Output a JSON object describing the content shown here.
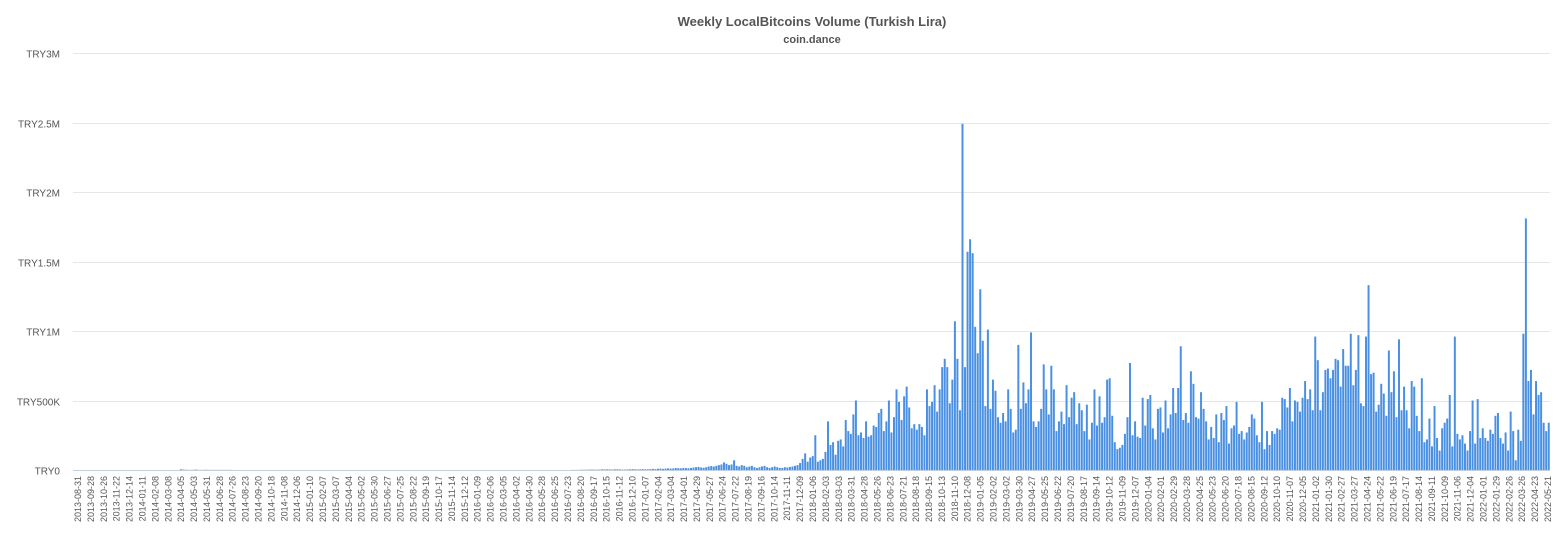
{
  "chart_data": {
    "type": "bar",
    "title": "Weekly LocalBitcoins Volume (Turkish Lira)",
    "subtitle": "coin.dance",
    "xlabel": "",
    "ylabel": "",
    "ylim": [
      0,
      3000000
    ],
    "y_ticks": [
      {
        "value": 0,
        "label": "TRY0"
      },
      {
        "value": 500000,
        "label": "TRY500K"
      },
      {
        "value": 1000000,
        "label": "TRY1M"
      },
      {
        "value": 1500000,
        "label": "TRY1.5M"
      },
      {
        "value": 2000000,
        "label": "TRY2M"
      },
      {
        "value": 2500000,
        "label": "TRY2.5M"
      },
      {
        "value": 3000000,
        "label": "TRY3M"
      }
    ],
    "grid": true,
    "legend": "none",
    "bar_color": "#4a90e2",
    "x_tick_labels": [
      "2013-08-31",
      "2013-09-28",
      "2013-10-26",
      "2013-11-22",
      "2013-12-14",
      "2014-01-11",
      "2014-02-08",
      "2014-03-08",
      "2014-04-05",
      "2014-05-03",
      "2014-05-31",
      "2014-06-28",
      "2014-07-26",
      "2014-08-23",
      "2014-09-20",
      "2014-10-18",
      "2014-11-08",
      "2014-12-06",
      "2015-01-10",
      "2015-02-07",
      "2015-03-07",
      "2015-04-04",
      "2015-05-02",
      "2015-05-30",
      "2015-06-27",
      "2015-07-25",
      "2015-08-22",
      "2015-09-19",
      "2015-10-17",
      "2015-11-14",
      "2015-12-12",
      "2016-01-09",
      "2016-02-06",
      "2016-03-05",
      "2016-04-02",
      "2016-04-30",
      "2016-05-28",
      "2016-06-25",
      "2016-07-23",
      "2016-08-20",
      "2016-09-17",
      "2016-10-15",
      "2016-11-12",
      "2016-12-10",
      "2017-01-07",
      "2017-02-04",
      "2017-03-04",
      "2017-04-01",
      "2017-04-29",
      "2017-05-27",
      "2017-06-24",
      "2017-07-22",
      "2017-08-19",
      "2017-09-16",
      "2017-10-14",
      "2017-11-11",
      "2017-12-09",
      "2018-01-06",
      "2018-02-03",
      "2018-03-03",
      "2018-03-31",
      "2018-04-28",
      "2018-05-26",
      "2018-06-23",
      "2018-07-21",
      "2018-08-18",
      "2018-09-15",
      "2018-10-13",
      "2018-11-10",
      "2018-12-08",
      "2019-01-05",
      "2019-02-02",
      "2019-03-02",
      "2019-03-30",
      "2019-04-27",
      "2019-05-25",
      "2019-06-22",
      "2019-07-20",
      "2019-08-17",
      "2019-09-14",
      "2019-10-12",
      "2019-11-09",
      "2019-12-07",
      "2020-01-04",
      "2020-02-01",
      "2020-02-29",
      "2020-03-28",
      "2020-04-25",
      "2020-05-23",
      "2020-06-20",
      "2020-07-18",
      "2020-08-15",
      "2020-09-12",
      "2020-10-10",
      "2020-11-07",
      "2020-12-05",
      "2021-01-02",
      "2021-01-30",
      "2021-02-27",
      "2021-03-27",
      "2021-04-24",
      "2021-05-22",
      "2021-06-19",
      "2021-07-17",
      "2021-08-14",
      "2021-09-11",
      "2021-10-09",
      "2021-11-06",
      "2021-12-04",
      "2022-01-01",
      "2022-01-29",
      "2022-02-26",
      "2022-03-26",
      "2022-04-23",
      "2022-05-21"
    ],
    "values": [
      0,
      0,
      0,
      0,
      0,
      0,
      0,
      0,
      0,
      0,
      0,
      0,
      0,
      0,
      0,
      0,
      0,
      0,
      0,
      0,
      0,
      0,
      0,
      0,
      0,
      0,
      0,
      0,
      0,
      0,
      0,
      0,
      0,
      0,
      0,
      0,
      0,
      0,
      0,
      0,
      0,
      0,
      5000,
      3000,
      2000,
      1000,
      1000,
      2000,
      3000,
      1000,
      1000,
      1000,
      2000,
      1000,
      1000,
      1000,
      1000,
      1000,
      1000,
      1000,
      1000,
      1000,
      1000,
      0,
      0,
      0,
      0,
      0,
      0,
      0,
      0,
      0,
      0,
      0,
      0,
      0,
      0,
      0,
      0,
      0,
      0,
      0,
      0,
      0,
      0,
      0,
      0,
      0,
      0,
      0,
      0,
      0,
      0,
      0,
      0,
      0,
      0,
      0,
      0,
      0,
      0,
      0,
      0,
      0,
      0,
      0,
      0,
      0,
      0,
      0,
      0,
      0,
      0,
      0,
      0,
      0,
      0,
      0,
      0,
      0,
      0,
      0,
      0,
      0,
      0,
      0,
      0,
      0,
      0,
      0,
      0,
      0,
      0,
      0,
      0,
      0,
      0,
      0,
      0,
      0,
      0,
      0,
      0,
      0,
      0,
      0,
      0,
      0,
      0,
      0,
      0,
      0,
      0,
      0,
      0,
      0,
      0,
      0,
      0,
      0,
      0,
      0,
      0,
      0,
      0,
      0,
      0,
      0,
      0,
      0,
      0,
      0,
      0,
      0,
      0,
      0,
      0,
      0,
      0,
      0,
      0,
      0,
      0,
      0,
      0,
      0,
      0,
      0,
      0,
      0,
      0,
      0,
      0,
      0,
      0,
      0,
      1000,
      1000,
      1000,
      1000,
      2000,
      2000,
      2000,
      3000,
      3000,
      3000,
      2000,
      3000,
      5000,
      4000,
      5000,
      4000,
      3000,
      5000,
      5000,
      4000,
      3000,
      3000,
      4000,
      5000,
      6000,
      5000,
      4000,
      5000,
      6000,
      5000,
      5000,
      6000,
      8000,
      6000,
      9000,
      10000,
      8000,
      10000,
      12000,
      10000,
      11000,
      14000,
      13000,
      12000,
      15000,
      14000,
      12000,
      15000,
      18000,
      20000,
      22000,
      18000,
      16000,
      20000,
      25000,
      28000,
      25000,
      30000,
      35000,
      40000,
      55000,
      45000,
      35000,
      40000,
      70000,
      30000,
      25000,
      35000,
      30000,
      20000,
      25000,
      30000,
      20000,
      15000,
      20000,
      25000,
      30000,
      20000,
      15000,
      20000,
      25000,
      20000,
      15000,
      15000,
      20000,
      18000,
      22000,
      25000,
      30000,
      35000,
      50000,
      80000,
      120000,
      60000,
      90000,
      100000,
      250000,
      60000,
      70000,
      80000,
      130000,
      350000,
      180000,
      200000,
      110000,
      210000,
      220000,
      170000,
      360000,
      280000,
      260000,
      400000,
      500000,
      250000,
      270000,
      230000,
      350000,
      240000,
      250000,
      320000,
      310000,
      410000,
      440000,
      280000,
      350000,
      500000,
      270000,
      380000,
      580000,
      490000,
      360000,
      530000,
      600000,
      450000,
      300000,
      330000,
      290000,
      330000,
      310000,
      250000,
      580000,
      460000,
      490000,
      610000,
      420000,
      580000,
      740000,
      800000,
      740000,
      480000,
      650000,
      1070000,
      800000,
      430000,
      2490000,
      740000,
      1570000,
      1660000,
      1560000,
      1030000,
      840000,
      1300000,
      930000,
      460000,
      1010000,
      440000,
      650000,
      570000,
      380000,
      340000,
      410000,
      350000,
      580000,
      440000,
      270000,
      290000,
      900000,
      440000,
      630000,
      480000,
      580000,
      990000,
      350000,
      310000,
      350000,
      440000,
      760000,
      580000,
      400000,
      750000,
      580000,
      280000,
      350000,
      420000,
      330000,
      610000,
      380000,
      520000,
      560000,
      330000,
      480000,
      430000,
      280000,
      470000,
      220000,
      340000,
      580000,
      320000,
      530000,
      340000,
      380000,
      650000,
      660000,
      390000,
      200000,
      150000,
      160000,
      180000,
      260000,
      380000,
      770000,
      250000,
      350000,
      240000,
      230000,
      520000,
      320000,
      510000,
      540000,
      300000,
      220000,
      440000,
      450000,
      270000,
      500000,
      300000,
      400000,
      590000,
      410000,
      590000,
      890000,
      360000,
      410000,
      340000,
      710000,
      620000,
      380000,
      370000,
      560000,
      440000,
      350000,
      220000,
      310000,
      230000,
      400000,
      200000,
      410000,
      360000,
      460000,
      190000,
      300000,
      320000,
      490000,
      260000,
      280000,
      220000,
      270000,
      310000,
      400000,
      370000,
      250000,
      200000,
      490000,
      150000,
      280000,
      180000,
      280000,
      260000,
      300000,
      290000,
      520000,
      510000,
      450000,
      590000,
      350000,
      500000,
      490000,
      420000,
      520000,
      640000,
      510000,
      580000,
      430000,
      960000,
      790000,
      430000,
      560000,
      720000,
      730000,
      660000,
      720000,
      800000,
      790000,
      600000,
      870000,
      750000,
      750000,
      980000,
      610000,
      720000,
      970000,
      480000,
      460000,
      960000,
      1330000,
      690000,
      700000,
      420000,
      470000,
      620000,
      550000,
      390000,
      860000,
      560000,
      710000,
      380000,
      940000,
      430000,
      600000,
      430000,
      300000,
      640000,
      600000,
      390000,
      280000,
      660000,
      200000,
      220000,
      370000,
      170000,
      460000,
      230000,
      140000,
      300000,
      340000,
      370000,
      540000,
      170000,
      960000,
      260000,
      220000,
      250000,
      190000,
      140000,
      280000,
      500000,
      190000,
      510000,
      230000,
      300000,
      230000,
      210000,
      290000,
      260000,
      390000,
      410000,
      230000,
      190000,
      270000,
      140000,
      420000,
      280000,
      70000,
      290000,
      210000,
      980000,
      1810000,
      640000,
      720000,
      400000,
      640000,
      540000,
      560000,
      340000,
      280000,
      340000
    ]
  }
}
